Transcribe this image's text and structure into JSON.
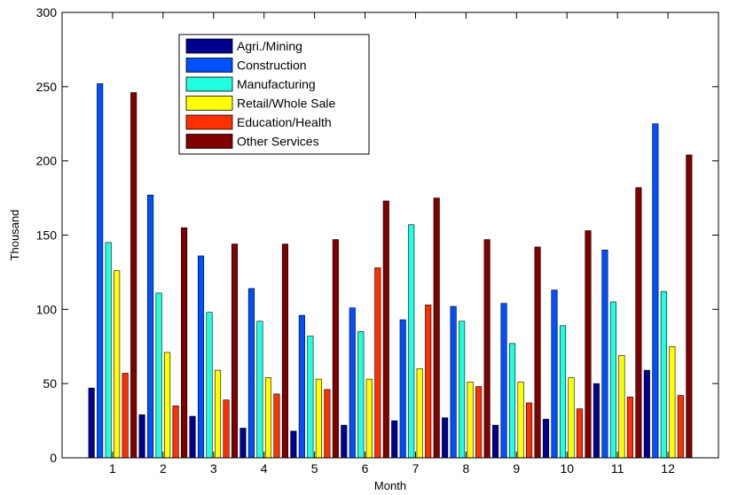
{
  "chart_data": {
    "type": "bar",
    "title": "",
    "xlabel": "Month",
    "ylabel": "Thousand",
    "categories": [
      "1",
      "2",
      "3",
      "4",
      "5",
      "6",
      "7",
      "8",
      "9",
      "10",
      "11",
      "12"
    ],
    "ylim": [
      0,
      300
    ],
    "yticks": [
      0,
      50,
      100,
      150,
      200,
      250,
      300
    ],
    "grid": false,
    "legend_position": "top-left",
    "series": [
      {
        "name": "Agri./Mining",
        "color": "#00008f",
        "values": [
          47,
          29,
          28,
          20,
          18,
          22,
          25,
          27,
          22,
          26,
          50,
          59
        ]
      },
      {
        "name": "Construction",
        "color": "#0050ff",
        "values": [
          252,
          177,
          136,
          114,
          96,
          101,
          93,
          102,
          104,
          113,
          140,
          225
        ]
      },
      {
        "name": "Manufacturing",
        "color": "#20ffdf",
        "values": [
          145,
          111,
          98,
          92,
          82,
          85,
          157,
          92,
          77,
          89,
          105,
          112
        ]
      },
      {
        "name": "Retail/Whole Sale",
        "color": "#ffff00",
        "values": [
          126,
          71,
          59,
          54,
          53,
          53,
          60,
          51,
          51,
          54,
          69,
          75
        ]
      },
      {
        "name": "Education/Health",
        "color": "#ff3000",
        "values": [
          57,
          35,
          39,
          43,
          46,
          128,
          103,
          48,
          37,
          33,
          41,
          42
        ]
      },
      {
        "name": "Other Services",
        "color": "#800000",
        "values": [
          246,
          155,
          144,
          144,
          147,
          173,
          175,
          147,
          142,
          153,
          182,
          204
        ]
      }
    ]
  }
}
